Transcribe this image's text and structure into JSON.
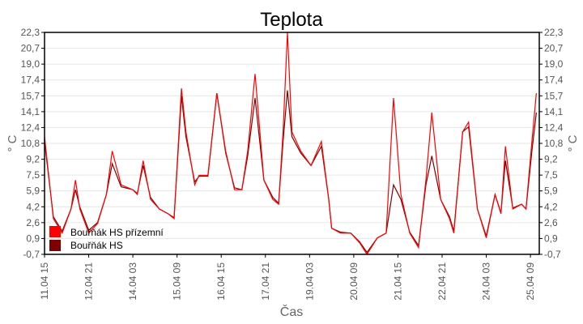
{
  "chart_data": {
    "type": "line",
    "title": "Teplota",
    "xlabel": "Čas",
    "ylabel": "° C",
    "ylabel_right": "° C",
    "xlim": [
      0,
      336
    ],
    "x_unit": "hours since 11.04 15",
    "ylim": [
      -0.7,
      22.3
    ],
    "yticks": [
      "22,3",
      "20,7",
      "19,0",
      "17,4",
      "15,7",
      "14,1",
      "12,4",
      "10,8",
      "9,2",
      "7,5",
      "5,9",
      "4,2",
      "2,6",
      "0,9",
      "-0,7"
    ],
    "xticks": [
      {
        "x": 0,
        "label": "11.04 15"
      },
      {
        "x": 30,
        "label": "12.04 21"
      },
      {
        "x": 60,
        "label": "14.04 03"
      },
      {
        "x": 90,
        "label": "15.04 09"
      },
      {
        "x": 120,
        "label": "16.04 15"
      },
      {
        "x": 150,
        "label": "17.04 21"
      },
      {
        "x": 180,
        "label": "19.04 03"
      },
      {
        "x": 210,
        "label": "20.04 09"
      },
      {
        "x": 240,
        "label": "21.04 15"
      },
      {
        "x": 270,
        "label": "22.04 21"
      },
      {
        "x": 300,
        "label": "24.04 03"
      },
      {
        "x": 330,
        "label": "25.04 09"
      }
    ],
    "grid": true,
    "legend_position": "bottom-left",
    "x": [
      0,
      6,
      12,
      18,
      21,
      24,
      30,
      36,
      42,
      46,
      52,
      60,
      63,
      67,
      72,
      78,
      84,
      88,
      93,
      96,
      102,
      105,
      111,
      117,
      123,
      129,
      134,
      138,
      143,
      149,
      155,
      159,
      162,
      165,
      168,
      174,
      181,
      188,
      193,
      195,
      201,
      208,
      214,
      219,
      226,
      232,
      237,
      242,
      248,
      254,
      259,
      263,
      269,
      275,
      278,
      284,
      288,
      294,
      300,
      306,
      310,
      313,
      318,
      324,
      327,
      331,
      334
    ],
    "series": [
      {
        "name": "Bouřňák HS přízemní",
        "color": "#ff0000",
        "values": [
          11.5,
          3,
          1.5,
          4,
          7,
          4,
          1.5,
          2.5,
          5.5,
          10,
          6.5,
          6,
          5.5,
          9,
          5,
          4,
          3.5,
          3,
          16.5,
          12,
          6.5,
          7.5,
          7.5,
          16,
          10,
          6,
          6,
          10,
          18,
          7,
          5,
          4.5,
          12,
          22.3,
          12,
          10,
          8.5,
          11,
          5,
          2,
          1.5,
          1.5,
          0.5,
          -0.7,
          1,
          1.5,
          15.5,
          5.5,
          1.5,
          0,
          7,
          14,
          5,
          3,
          1.5,
          12,
          13,
          4,
          1,
          5.5,
          3.5,
          10.5,
          4,
          4.5,
          4,
          11,
          16
        ]
      },
      {
        "name": "Bouřňák HS",
        "color": "#800000",
        "values": [
          11,
          3.2,
          1.7,
          4,
          6,
          4.2,
          1.8,
          2.6,
          5.5,
          8.7,
          6.3,
          6,
          5.6,
          8.5,
          5.2,
          4,
          3.5,
          3.1,
          15.7,
          11.5,
          6.8,
          7.4,
          7.4,
          16,
          9.8,
          6.2,
          6,
          9.5,
          15.5,
          7,
          5.2,
          4.6,
          11,
          16.3,
          11.5,
          9.8,
          8.5,
          10.5,
          5,
          2,
          1.6,
          1.5,
          0.6,
          -0.5,
          1,
          1.5,
          6.5,
          5,
          1.6,
          0.2,
          6.5,
          9.5,
          5,
          3.2,
          1.7,
          12,
          12.5,
          4,
          1.2,
          5.5,
          3.6,
          9,
          4.1,
          4.5,
          4,
          10,
          14
        ]
      }
    ]
  }
}
